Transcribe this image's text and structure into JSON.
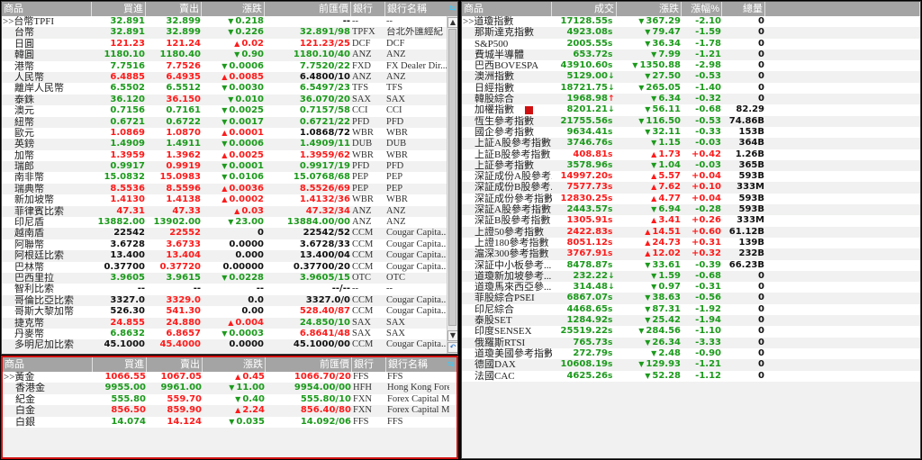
{
  "colors": {
    "up": "#ff1a1a",
    "down": "#1c9a1c",
    "neutral": "#111111",
    "header": "#a4a4a4",
    "active_border": "#d01010"
  },
  "fx": {
    "headers": [
      "商品",
      "買進",
      "賣出",
      "漲跌",
      "前匯價",
      "銀行",
      "銀行名稱"
    ],
    "rows": [
      [
        ">>台幣TPFI",
        "32.891",
        "g",
        "32.899",
        "g",
        "0.218",
        "g",
        "--",
        "k",
        "--",
        "--"
      ],
      [
        "台幣",
        "32.891",
        "g",
        "32.899",
        "g",
        "0.226",
        "g",
        "32.891/98",
        "g",
        "TPFX",
        "台北外匯經紀"
      ],
      [
        "日圓",
        "121.23",
        "r",
        "121.24",
        "r",
        "0.02",
        "r",
        "121.23/25",
        "r",
        "DCF",
        "DCF"
      ],
      [
        "韓圓",
        "1180.10",
        "g",
        "1180.40",
        "g",
        "0.90",
        "g",
        "1180.10/40",
        "g",
        "ANZ",
        "ANZ"
      ],
      [
        "港幣",
        "7.7516",
        "g",
        "7.7526",
        "r",
        "0.0006",
        "g",
        "7.7520/22",
        "g",
        "FXD",
        "FX Dealer Dir..."
      ],
      [
        "人民幣",
        "6.4885",
        "r",
        "6.4935",
        "r",
        "0.0085",
        "r",
        "6.4800/10",
        "k",
        "ANZ",
        "ANZ"
      ],
      [
        "離岸人民幣",
        "6.5502",
        "g",
        "6.5512",
        "g",
        "0.0030",
        "g",
        "6.5497/23",
        "g",
        "TFS",
        "TFS"
      ],
      [
        "泰銖",
        "36.120",
        "g",
        "36.150",
        "r",
        "0.010",
        "g",
        "36.070/20",
        "g",
        "SAX",
        "SAX"
      ],
      [
        "澳元",
        "0.7156",
        "g",
        "0.7161",
        "g",
        "0.0025",
        "g",
        "0.7157/58",
        "g",
        "CCI",
        "CCI"
      ],
      [
        "紐幣",
        "0.6721",
        "g",
        "0.6722",
        "g",
        "0.0017",
        "g",
        "0.6721/22",
        "g",
        "PFD",
        "PFD"
      ],
      [
        "歐元",
        "1.0869",
        "r",
        "1.0870",
        "r",
        "0.0001",
        "r",
        "1.0868/72",
        "k",
        "WBR",
        "WBR"
      ],
      [
        "英鎊",
        "1.4909",
        "g",
        "1.4911",
        "g",
        "0.0006",
        "g",
        "1.4909/11",
        "g",
        "DUB",
        "DUB"
      ],
      [
        "加幣",
        "1.3959",
        "r",
        "1.3962",
        "r",
        "0.0025",
        "r",
        "1.3959/62",
        "r",
        "WBR",
        "WBR"
      ],
      [
        "瑞郎",
        "0.9917",
        "g",
        "0.9919",
        "r",
        "0.0001",
        "g",
        "0.9917/19",
        "g",
        "PFD",
        "PFD"
      ],
      [
        "南非幣",
        "15.0832",
        "g",
        "15.0983",
        "r",
        "0.0106",
        "g",
        "15.0768/68",
        "g",
        "PEP",
        "PEP"
      ],
      [
        "瑞典幣",
        "8.5536",
        "r",
        "8.5596",
        "r",
        "0.0036",
        "r",
        "8.5526/69",
        "r",
        "PEP",
        "PEP"
      ],
      [
        "新加坡幣",
        "1.4130",
        "r",
        "1.4138",
        "r",
        "0.0002",
        "r",
        "1.4132/36",
        "r",
        "WBR",
        "WBR"
      ],
      [
        "菲律賓比索",
        "47.31",
        "r",
        "47.33",
        "r",
        "0.03",
        "r",
        "47.32/34",
        "r",
        "ANZ",
        "ANZ"
      ],
      [
        "印尼盾",
        "13882.00",
        "g",
        "13902.00",
        "g",
        "23.00",
        "g",
        "13884.00/00",
        "g",
        "ANZ",
        "ANZ"
      ],
      [
        "越南盾",
        "22542",
        "k",
        "22552",
        "r",
        "0",
        "k",
        "22542/52",
        "k",
        "CCM",
        "Cougar Capita..."
      ],
      [
        "阿聯幣",
        "3.6728",
        "k",
        "3.6733",
        "r",
        "0.0000",
        "k",
        "3.6728/33",
        "k",
        "CCM",
        "Cougar Capita..."
      ],
      [
        "阿根廷比索",
        "13.400",
        "k",
        "13.404",
        "r",
        "0.000",
        "k",
        "13.400/04",
        "k",
        "CCM",
        "Cougar Capita..."
      ],
      [
        "巴林幣",
        "0.37700",
        "k",
        "0.37720",
        "r",
        "0.00000",
        "k",
        "0.37700/20",
        "k",
        "CCM",
        "Cougar Capita..."
      ],
      [
        "巴西里拉",
        "3.9605",
        "g",
        "3.9615",
        "g",
        "0.0228",
        "g",
        "3.9605/15",
        "g",
        "OTC",
        "OTC"
      ],
      [
        "智利比索",
        "--",
        "k",
        "--",
        "k",
        "--",
        "k",
        "--/--",
        "k",
        "--",
        "--"
      ],
      [
        "哥倫比亞比索",
        "3327.0",
        "k",
        "3329.0",
        "r",
        "0.0",
        "k",
        "3327.0/0",
        "k",
        "CCM",
        "Cougar Capita..."
      ],
      [
        "哥斯大黎加幣",
        "526.30",
        "k",
        "541.30",
        "r",
        "0.00",
        "k",
        "528.40/87",
        "r",
        "CCM",
        "Cougar Capita..."
      ],
      [
        "捷克幣",
        "24.855",
        "r",
        "24.880",
        "r",
        "0.004",
        "r",
        "24.850/10",
        "g",
        "SAX",
        "SAX"
      ],
      [
        "丹麥幣",
        "6.8632",
        "g",
        "6.8657",
        "r",
        "0.0003",
        "g",
        "6.8641/48",
        "r",
        "SAX",
        "SAX"
      ],
      [
        "多明尼加比索",
        "45.1000",
        "k",
        "45.4000",
        "r",
        "0.0000",
        "k",
        "45.1000/00",
        "k",
        "CCM",
        "Cougar Capita..."
      ]
    ]
  },
  "metal": {
    "headers": [
      "商品",
      "買進",
      "賣出",
      "漲跌",
      "前匯價",
      "銀行",
      "銀行名稱"
    ],
    "rows": [
      [
        ">>黃金",
        "1066.55",
        "r",
        "1067.05",
        "r",
        "0.45",
        "r",
        "1066.70/20",
        "r",
        "FFS",
        "FFS"
      ],
      [
        "香港金",
        "9955.00",
        "g",
        "9961.00",
        "g",
        "11.00",
        "g",
        "9954.00/00",
        "g",
        "HFH",
        "Hong Kong Forex Investment"
      ],
      [
        "紀金",
        "555.80",
        "g",
        "559.70",
        "r",
        "0.40",
        "g",
        "555.80/10",
        "g",
        "FXN",
        "Forex Capital Markets"
      ],
      [
        "白金",
        "856.50",
        "r",
        "859.90",
        "r",
        "2.24",
        "r",
        "856.40/80",
        "r",
        "FXN",
        "Forex Capital Markets"
      ],
      [
        "白銀",
        "14.074",
        "g",
        "14.124",
        "r",
        "0.035",
        "g",
        "14.092/06",
        "g",
        "FFS",
        "FFS"
      ]
    ]
  },
  "idx": {
    "headers": [
      "商品",
      "成交",
      "漲跌",
      "漲幅%",
      "總量"
    ],
    "rows": [
      [
        ">>道瓊指數",
        "17128.55",
        "g",
        "s",
        "367.29",
        "-2.10",
        "0"
      ],
      [
        "那斯達克指數",
        "4923.08",
        "g",
        "s",
        "79.47",
        "-1.59",
        "0"
      ],
      [
        "S&P500",
        "2005.55",
        "g",
        "s",
        "36.34",
        "-1.78",
        "0"
      ],
      [
        "費城半導體",
        "653.72",
        "g",
        "s",
        "7.99",
        "-1.21",
        "0"
      ],
      [
        "巴西BOVESPA",
        "43910.60",
        "g",
        "s",
        "1350.88",
        "-2.98",
        "0"
      ],
      [
        "澳洲指數",
        "5129.00",
        "g",
        "down",
        "27.50",
        "-0.53",
        "0"
      ],
      [
        "日經指數",
        "18721.75",
        "g",
        "down",
        "265.05",
        "-1.40",
        "0"
      ],
      [
        "韓股綜合",
        "1968.98",
        "g",
        "up",
        "6.34",
        "-0.32",
        "0"
      ],
      [
        "加權指數",
        "8201.21",
        "g",
        "down",
        "56.11",
        "-0.68",
        "82.29"
      ],
      [
        "恆生參考指數",
        "21755.56",
        "g",
        "s",
        "116.50",
        "-0.53",
        "74.86B"
      ],
      [
        "國企參考指數",
        "9634.41",
        "g",
        "s",
        "32.11",
        "-0.33",
        "153B"
      ],
      [
        "上証A股參考指數",
        "3746.76",
        "g",
        "s",
        "1.15",
        "-0.03",
        "364B"
      ],
      [
        "上証B股參考指數",
        "408.81",
        "r",
        "s",
        "1.73",
        "+0.42",
        "1.26B"
      ],
      [
        "上証參考指數",
        "3578.96",
        "g",
        "s",
        "1.04",
        "-0.03",
        "365B"
      ],
      [
        "深証成份A股參考...",
        "14997.20",
        "r",
        "s",
        "5.57",
        "+0.04",
        "593B"
      ],
      [
        "深証成份B股參考...",
        "7577.73",
        "r",
        "s",
        "7.62",
        "+0.10",
        "333M"
      ],
      [
        "深証成份參考指數",
        "12830.25",
        "r",
        "s",
        "4.77",
        "+0.04",
        "593B"
      ],
      [
        "深証A股參考指數",
        "2443.57",
        "g",
        "s",
        "6.94",
        "-0.28",
        "593B"
      ],
      [
        "深証B股參考指數",
        "1305.91",
        "r",
        "s",
        "3.41",
        "+0.26",
        "333M"
      ],
      [
        "上證50參考指數",
        "2422.83",
        "r",
        "s",
        "14.51",
        "+0.60",
        "61.12B"
      ],
      [
        "上證180參考指數",
        "8051.12",
        "r",
        "s",
        "24.73",
        "+0.31",
        "139B"
      ],
      [
        "滬深300參考指數",
        "3767.91",
        "r",
        "s",
        "12.02",
        "+0.32",
        "232B"
      ],
      [
        "深証中小板參考...",
        "8478.87",
        "g",
        "s",
        "33.61",
        "-0.39",
        "66.23B"
      ],
      [
        "道瓊新加坡參考...",
        "232.22",
        "g",
        "down",
        "1.59",
        "-0.68",
        "0"
      ],
      [
        "道瓊馬來西亞參...",
        "314.48",
        "g",
        "down",
        "0.97",
        "-0.31",
        "0"
      ],
      [
        "菲股綜合PSEI",
        "6867.07",
        "g",
        "s",
        "38.63",
        "-0.56",
        "0"
      ],
      [
        "印尼綜合",
        "4468.65",
        "g",
        "s",
        "87.31",
        "-1.92",
        "0"
      ],
      [
        "泰股SET",
        "1284.92",
        "g",
        "s",
        "25.42",
        "-1.94",
        "0"
      ],
      [
        "印度SENSEX",
        "25519.22",
        "g",
        "s",
        "284.56",
        "-1.10",
        "0"
      ],
      [
        "俄羅斯RTSI",
        "765.73",
        "g",
        "s",
        "26.34",
        "-3.33",
        "0"
      ],
      [
        "道瓊美國參考指數",
        "272.79",
        "g",
        "s",
        "2.48",
        "-0.90",
        "0"
      ],
      [
        "德國DAX",
        "10608.19",
        "g",
        "s",
        "129.93",
        "-1.21",
        "0"
      ],
      [
        "法國CAC",
        "4625.26",
        "g",
        "s",
        "52.28",
        "-1.12",
        "0"
      ]
    ]
  }
}
